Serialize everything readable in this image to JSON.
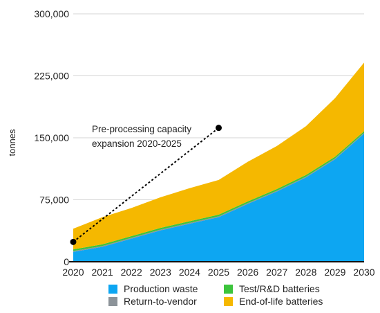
{
  "chart_data": {
    "type": "area",
    "stacked": true,
    "x": [
      "2020",
      "2021",
      "2022",
      "2023",
      "2024",
      "2025",
      "2026",
      "2027",
      "2028",
      "2029",
      "2030"
    ],
    "ylabel": "tonnes",
    "ylim": [
      0,
      300000
    ],
    "yticks": [
      0,
      75000,
      150000,
      225000,
      300000
    ],
    "ytick_labels": [
      "0",
      "75,000",
      "150,000",
      "225,000",
      "300,000"
    ],
    "grid": true,
    "legend_position": "bottom",
    "series": [
      {
        "name": "Production waste",
        "color": "#0da6f2",
        "values": [
          12000,
          18000,
          28000,
          38000,
          46000,
          54000,
          70000,
          85000,
          102000,
          124000,
          155000
        ]
      },
      {
        "name": "Return-to-vendor",
        "color": "#8c9399",
        "values": [
          1000,
          1000,
          1000,
          1000,
          1000,
          1000,
          1000,
          1000,
          1000,
          1000,
          1000
        ]
      },
      {
        "name": "Test/R&D batteries",
        "color": "#3cc43c",
        "values": [
          2000,
          2000,
          2000,
          2000,
          2000,
          2000,
          2000,
          2000,
          2000,
          2000,
          2000
        ]
      },
      {
        "name": "End-of-life batteries",
        "color": "#f5b800",
        "values": [
          25000,
          33000,
          34000,
          37000,
          40000,
          42000,
          48000,
          52000,
          59000,
          71000,
          83000
        ]
      }
    ],
    "annotations": [
      {
        "text": [
          "Pre-processing   capacity",
          "expansion 2020-2025"
        ],
        "from": {
          "x": "2020",
          "y": 24000
        },
        "to": {
          "x": "2025",
          "y": 162000
        },
        "style": "dotted-arrow"
      }
    ]
  },
  "colors": {
    "grid": "#d6d6d6",
    "axis": "#111111",
    "annotation": "#000000"
  }
}
